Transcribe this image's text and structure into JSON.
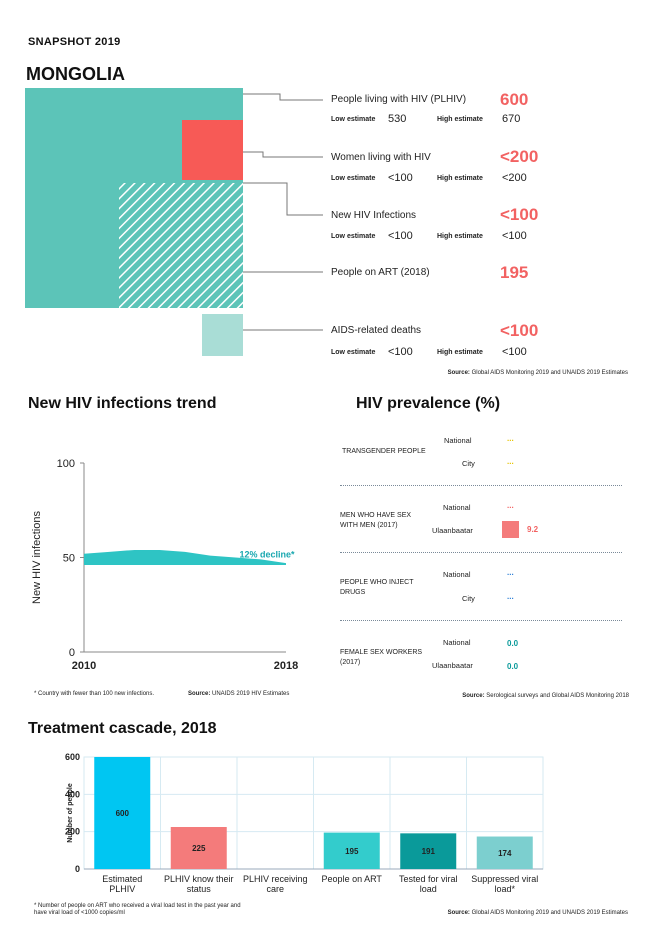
{
  "header": {
    "snapshot": "SNAPSHOT 2019",
    "country": "MONGOLIA"
  },
  "estimates": {
    "low_label": "Low estimate",
    "high_label": "High estimate",
    "items": [
      {
        "label": "People living with HIV (PLHIV)",
        "value": "600",
        "low": "530",
        "high": "670"
      },
      {
        "label": "Women living with HIV",
        "value": "<200",
        "low": "<100",
        "high": "<200"
      },
      {
        "label": "New HIV Infections",
        "value": "<100",
        "low": "<100",
        "high": "<100"
      },
      {
        "label": "People on ART (2018)",
        "value": "195"
      },
      {
        "label": "AIDS-related deaths",
        "value": "<100",
        "low": "<100",
        "high": "<100"
      }
    ],
    "source_label": "Source:",
    "source_text": "Global AIDS Monitoring 2019 and UNAIDS 2019 Estimates"
  },
  "trend": {
    "title": "New HIV infections trend",
    "footnote": "* Country with fewer than 100 new infections.",
    "source_label": "Source:",
    "source_text": "UNAIDS 2019 HIV Estimates"
  },
  "prevalence": {
    "title": "HIV prevalence (%)",
    "groups": [
      {
        "name": "TRANSGENDER PEOPLE",
        "rows": [
          {
            "loc": "National",
            "val": "..."
          },
          {
            "loc": "City",
            "val": "..."
          }
        ]
      },
      {
        "name": "MEN WHO HAVE SEX WITH MEN (2017)",
        "rows": [
          {
            "loc": "National",
            "val": "..."
          },
          {
            "loc": "Ulaanbaatar",
            "val": "9.2"
          }
        ]
      },
      {
        "name": "PEOPLE WHO INJECT DRUGS",
        "rows": [
          {
            "loc": "National",
            "val": "..."
          },
          {
            "loc": "City",
            "val": "..."
          }
        ]
      },
      {
        "name": "FEMALE SEX WORKERS (2017)",
        "rows": [
          {
            "loc": "National",
            "val": "0.0"
          },
          {
            "loc": "Ulaanbaatar",
            "val": "0.0"
          }
        ]
      }
    ],
    "source_label": "Source:",
    "source_text": "Serological surveys and Global AIDS Monitoring 2018"
  },
  "cascade": {
    "title": "Treatment cascade, 2018",
    "footnote": "* Number of people on ART who received a viral load test in the past year and have viral load of <1000 copies/ml",
    "source_label": "Source:",
    "source_text": "Global AIDS Monitoring 2019 and UNAIDS 2019 Estimates"
  },
  "chart_data": [
    {
      "type": "area",
      "title": "New HIV infections trend",
      "xlabel": "",
      "ylabel": "New HIV infections",
      "x": [
        2010,
        2011,
        2012,
        2013,
        2014,
        2015,
        2016,
        2017,
        2018
      ],
      "series": [
        {
          "name": "New HIV infections (low)",
          "values": [
            46,
            46,
            46,
            46,
            46,
            46,
            46,
            46,
            46
          ]
        },
        {
          "name": "New HIV infections (high)",
          "values": [
            52,
            53,
            54,
            54,
            53,
            51,
            50,
            49,
            47
          ]
        }
      ],
      "xticks": [
        "2010",
        "2018"
      ],
      "yticks": [
        "0",
        "50",
        "100"
      ],
      "ylim": [
        0,
        100
      ],
      "annotation": "12% decline*"
    },
    {
      "type": "bar",
      "title": "Treatment cascade, 2018",
      "ylabel": "Number of people",
      "categories": [
        "Estimated PLHIV",
        "PLHIV know their status",
        "PLHIV receiving care",
        "People on ART",
        "Tested for viral load",
        "Suppressed viral load*"
      ],
      "values": [
        600,
        225,
        null,
        195,
        191,
        174
      ],
      "labels": [
        "600",
        "225",
        "",
        "195",
        "191",
        "174"
      ],
      "colors": [
        "#00c6f2",
        "#f47b7b",
        "#ffffff",
        "#33cccc",
        "#0a9a9a",
        "#7ccfcf"
      ],
      "yticks": [
        "0",
        "200",
        "400",
        "600"
      ],
      "ylim": [
        0,
        600
      ]
    }
  ]
}
